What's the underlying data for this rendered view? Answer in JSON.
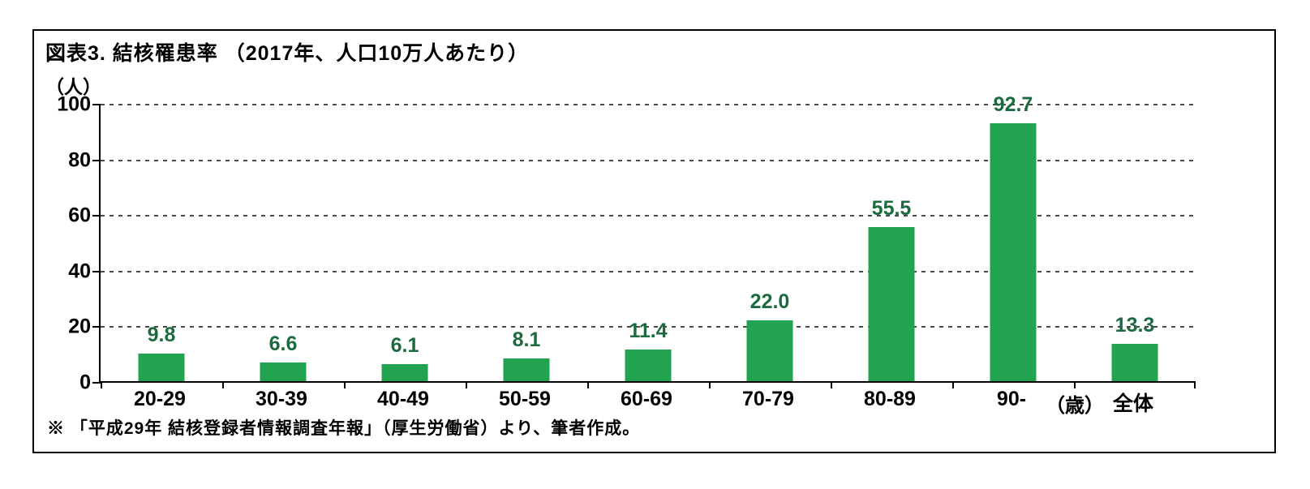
{
  "chart_data": {
    "type": "bar",
    "title": "図表3. 結核罹患率 （2017年、人口10万人あたり）",
    "categories": [
      "20-29",
      "30-39",
      "40-49",
      "50-59",
      "60-69",
      "70-79",
      "80-89",
      "90-",
      "全体"
    ],
    "values": [
      9.8,
      6.6,
      6.1,
      8.1,
      11.4,
      22.0,
      55.5,
      92.7,
      13.3
    ],
    "value_labels": [
      "9.8",
      "6.6",
      "6.1",
      "8.1",
      "11.4",
      "22.0",
      "55.5",
      "92.7",
      "13.3"
    ],
    "ylabel": "（人）",
    "x_unit_label": "（歳）",
    "ylim": [
      0,
      100
    ],
    "yticks": [
      0,
      20,
      40,
      60,
      80,
      100
    ],
    "grid": "horizontal-dashed",
    "legend": "none",
    "bar_color": "#22A34F",
    "value_label_color": "#1B6B3F",
    "axis_color": "#000000"
  },
  "footnote": "※ 「平成29年 結核登録者情報調査年報」（厚生労働省）より、筆者作成。"
}
